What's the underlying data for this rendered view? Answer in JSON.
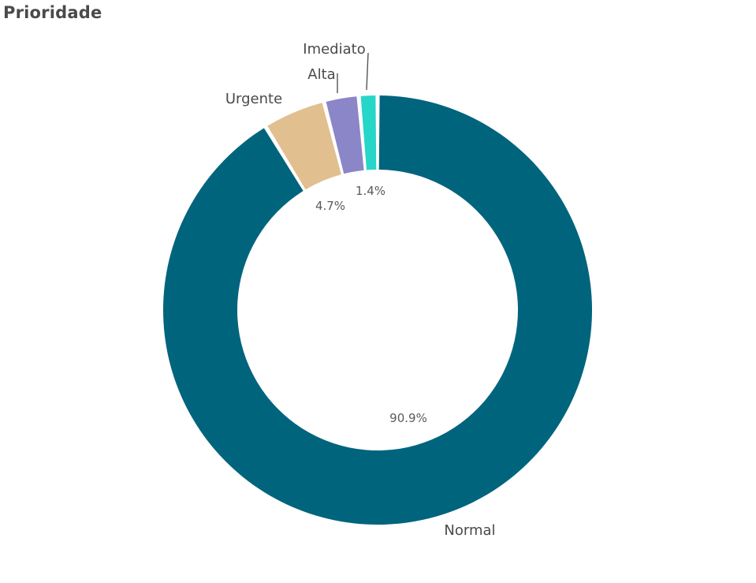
{
  "chart_data": {
    "type": "pie",
    "title": "Prioridade",
    "categories": [
      "Normal",
      "Urgente",
      "Alta",
      "Imediato"
    ],
    "values": [
      90.9,
      4.7,
      2.6,
      1.4
    ],
    "colors": [
      "#00647d",
      "#e1bf8e",
      "#8b86c8",
      "#26d6c9"
    ],
    "donut": true,
    "start": "top",
    "direction": "clockwise",
    "value_labels": [
      "90.9%",
      "4.7%",
      "",
      "1.4%"
    ]
  }
}
